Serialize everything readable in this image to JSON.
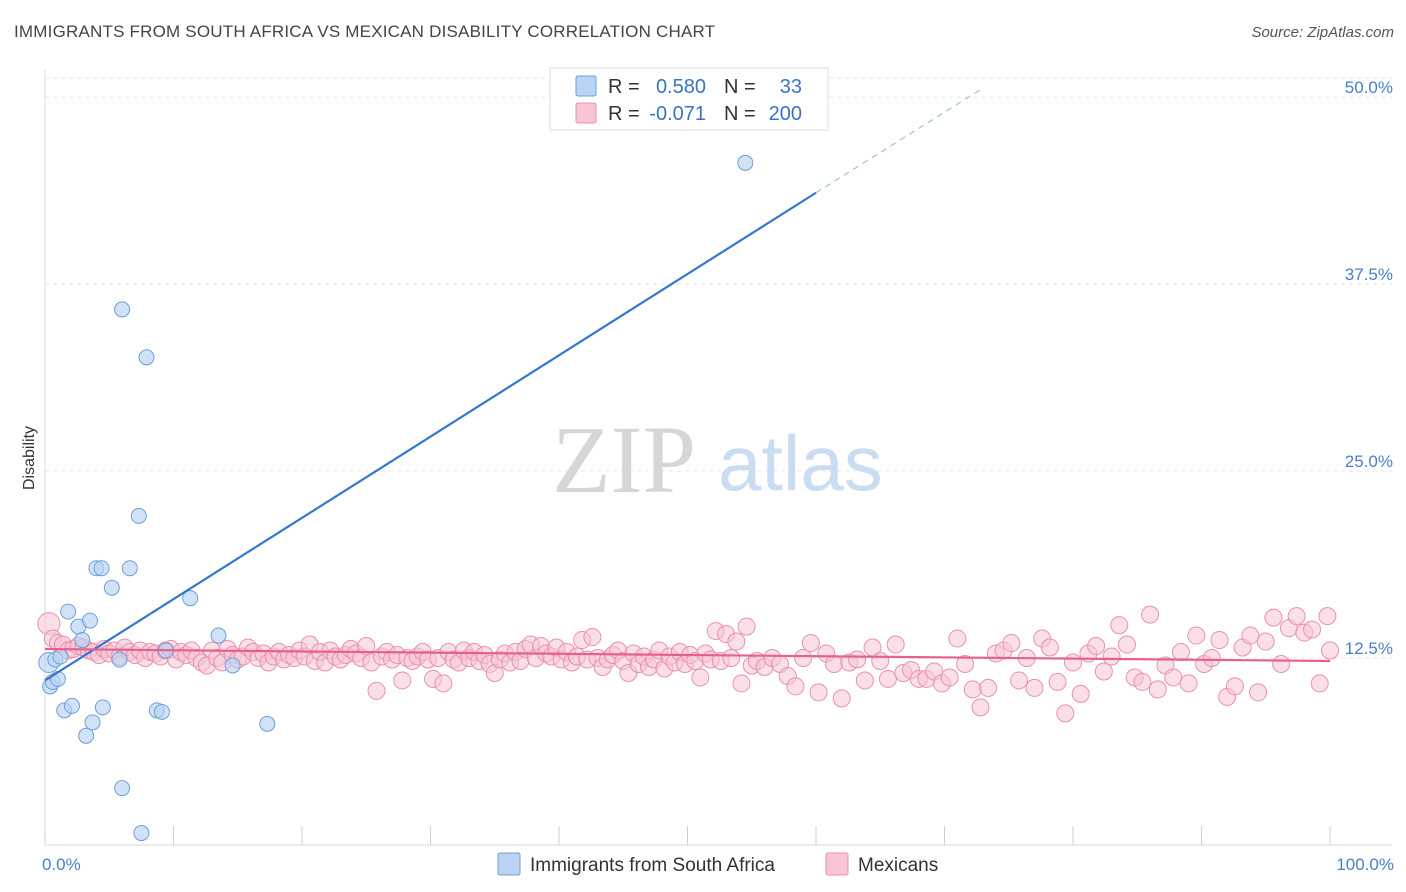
{
  "header": {
    "title": "IMMIGRANTS FROM SOUTH AFRICA VS MEXICAN DISABILITY CORRELATION CHART",
    "source": "Source: ZipAtlas.com"
  },
  "watermark": {
    "zip": "ZIP",
    "atlas": "atlas"
  },
  "colors": {
    "blue_fill": "#b9d3f2",
    "blue_stroke": "#6d9fd6",
    "blue_line": "#3478cc",
    "pink_fill": "#f8c5d5",
    "pink_stroke": "#e890ae",
    "pink_line": "#e5608f",
    "value_text": "#3b73c4"
  },
  "legend": {
    "r_label": "R =",
    "n_label": "N =",
    "rows": [
      {
        "series": "blue",
        "r_value": "0.580",
        "n_value": "33"
      },
      {
        "series": "pink",
        "r_value": "-0.071",
        "n_value": "200"
      }
    ]
  },
  "bottom_legend": {
    "items": [
      {
        "series": "blue",
        "label": "Immigrants from South Africa"
      },
      {
        "series": "pink",
        "label": "Mexicans"
      }
    ]
  },
  "chart_data": {
    "type": "scatter",
    "title": "IMMIGRANTS FROM SOUTH AFRICA VS MEXICAN DISABILITY CORRELATION CHART",
    "xlabel": "",
    "ylabel": "Disability",
    "xlim": [
      0,
      100
    ],
    "ylim": [
      0,
      50
    ],
    "x_tick_labels": [
      "0.0%",
      "100.0%"
    ],
    "y_ticks": [
      12.5,
      25.0,
      37.5,
      50.0
    ],
    "y_tick_labels": [
      "12.5%",
      "25.0%",
      "37.5%",
      "50.0%"
    ],
    "gridlines": "horizontal dashed",
    "series": [
      {
        "name": "Immigrants from South Africa",
        "color": "blue",
        "r": 0.58,
        "n": 33,
        "trendline": {
          "x_start": 0,
          "y_start": 11.0,
          "x_solid_end": 60,
          "y_solid_end": 43.6,
          "x_dash_end": 73,
          "y_dash_end": 50.6
        },
        "points": [
          [
            0.3,
            12.2
          ],
          [
            0.4,
            10.6
          ],
          [
            0.6,
            10.9
          ],
          [
            0.8,
            12.4
          ],
          [
            1.0,
            11.1
          ],
          [
            1.2,
            12.6
          ],
          [
            1.5,
            9.0
          ],
          [
            1.8,
            15.6
          ],
          [
            2.1,
            9.3
          ],
          [
            2.6,
            14.6
          ],
          [
            2.9,
            13.7
          ],
          [
            3.2,
            7.3
          ],
          [
            3.5,
            15.0
          ],
          [
            3.7,
            8.2
          ],
          [
            4.0,
            18.5
          ],
          [
            4.4,
            18.5
          ],
          [
            4.5,
            9.2
          ],
          [
            5.2,
            17.2
          ],
          [
            5.8,
            12.4
          ],
          [
            6.0,
            35.8
          ],
          [
            6.0,
            3.8
          ],
          [
            6.6,
            18.5
          ],
          [
            7.3,
            22.0
          ],
          [
            7.5,
            0.8
          ],
          [
            7.9,
            32.6
          ],
          [
            8.7,
            9.0
          ],
          [
            9.1,
            8.9
          ],
          [
            9.4,
            13.0
          ],
          [
            11.3,
            16.5
          ],
          [
            13.5,
            14.0
          ],
          [
            14.6,
            12.0
          ],
          [
            17.3,
            8.1
          ],
          [
            54.5,
            45.6
          ]
        ]
      },
      {
        "name": "Mexicans",
        "color": "pink",
        "r": -0.071,
        "n": 200,
        "trendline": {
          "x_start": 0,
          "y_start": 13.1,
          "x_end": 100,
          "y_end": 12.3
        },
        "points": [
          [
            0.3,
            14.8
          ],
          [
            0.6,
            13.8
          ],
          [
            1.0,
            13.5
          ],
          [
            1.4,
            13.4
          ],
          [
            1.8,
            13.0
          ],
          [
            2.2,
            13.1
          ],
          [
            2.6,
            13.3
          ],
          [
            3.0,
            13.2
          ],
          [
            3.4,
            13.0
          ],
          [
            3.8,
            12.9
          ],
          [
            4.2,
            12.7
          ],
          [
            4.6,
            13.1
          ],
          [
            5.0,
            12.8
          ],
          [
            5.4,
            13.0
          ],
          [
            5.8,
            12.6
          ],
          [
            6.2,
            13.2
          ],
          [
            6.6,
            12.9
          ],
          [
            7.0,
            12.7
          ],
          [
            7.4,
            13.0
          ],
          [
            7.8,
            12.5
          ],
          [
            8.2,
            12.9
          ],
          [
            8.6,
            12.8
          ],
          [
            9.0,
            12.6
          ],
          [
            9.4,
            13.0
          ],
          [
            9.8,
            13.1
          ],
          [
            10.2,
            12.4
          ],
          [
            10.6,
            12.9
          ],
          [
            11.0,
            12.7
          ],
          [
            11.4,
            13.0
          ],
          [
            11.8,
            12.5
          ],
          [
            12.2,
            12.2
          ],
          [
            12.6,
            12.0
          ],
          [
            13.0,
            13.0
          ],
          [
            13.4,
            12.5
          ],
          [
            13.8,
            12.2
          ],
          [
            14.2,
            13.1
          ],
          [
            14.6,
            12.7
          ],
          [
            15.0,
            12.4
          ],
          [
            15.4,
            12.6
          ],
          [
            15.8,
            13.2
          ],
          [
            16.2,
            12.9
          ],
          [
            16.6,
            12.5
          ],
          [
            17.0,
            12.8
          ],
          [
            17.4,
            12.2
          ],
          [
            17.8,
            12.6
          ],
          [
            18.2,
            12.9
          ],
          [
            18.6,
            12.4
          ],
          [
            19.0,
            12.7
          ],
          [
            19.4,
            12.5
          ],
          [
            19.8,
            13.0
          ],
          [
            20.2,
            12.6
          ],
          [
            20.6,
            13.4
          ],
          [
            21.0,
            12.3
          ],
          [
            21.4,
            12.9
          ],
          [
            21.8,
            12.2
          ],
          [
            22.2,
            13.0
          ],
          [
            22.6,
            12.6
          ],
          [
            23.0,
            12.4
          ],
          [
            23.4,
            12.7
          ],
          [
            23.8,
            13.1
          ],
          [
            24.2,
            12.8
          ],
          [
            24.6,
            12.5
          ],
          [
            25.0,
            13.3
          ],
          [
            25.4,
            12.2
          ],
          [
            25.8,
            10.3
          ],
          [
            26.2,
            12.6
          ],
          [
            26.6,
            12.9
          ],
          [
            27.0,
            12.4
          ],
          [
            27.4,
            12.7
          ],
          [
            27.8,
            11.0
          ],
          [
            28.2,
            12.5
          ],
          [
            28.6,
            12.3
          ],
          [
            29.0,
            12.6
          ],
          [
            29.4,
            12.9
          ],
          [
            29.8,
            12.4
          ],
          [
            30.2,
            11.1
          ],
          [
            30.6,
            12.5
          ],
          [
            31.0,
            10.8
          ],
          [
            31.4,
            12.9
          ],
          [
            31.8,
            12.4
          ],
          [
            32.2,
            12.2
          ],
          [
            32.6,
            13.0
          ],
          [
            33.0,
            12.5
          ],
          [
            33.4,
            12.9
          ],
          [
            33.8,
            12.3
          ],
          [
            34.2,
            12.7
          ],
          [
            34.6,
            12.1
          ],
          [
            35.0,
            11.5
          ],
          [
            35.4,
            12.4
          ],
          [
            35.8,
            12.8
          ],
          [
            36.2,
            12.2
          ],
          [
            36.6,
            12.9
          ],
          [
            37.0,
            12.3
          ],
          [
            37.4,
            13.1
          ],
          [
            37.8,
            13.4
          ],
          [
            38.2,
            12.5
          ],
          [
            38.6,
            13.3
          ],
          [
            39.0,
            12.8
          ],
          [
            39.4,
            12.6
          ],
          [
            39.8,
            13.2
          ],
          [
            40.2,
            12.4
          ],
          [
            40.6,
            12.9
          ],
          [
            41.0,
            12.2
          ],
          [
            41.4,
            12.6
          ],
          [
            41.8,
            13.7
          ],
          [
            42.2,
            12.4
          ],
          [
            42.6,
            13.9
          ],
          [
            43.0,
            12.5
          ],
          [
            43.4,
            11.9
          ],
          [
            43.8,
            12.4
          ],
          [
            44.2,
            12.7
          ],
          [
            44.6,
            13.0
          ],
          [
            45.0,
            12.3
          ],
          [
            45.4,
            11.5
          ],
          [
            45.8,
            12.8
          ],
          [
            46.2,
            12.1
          ],
          [
            46.6,
            12.6
          ],
          [
            47.0,
            11.9
          ],
          [
            47.4,
            12.4
          ],
          [
            47.8,
            13.0
          ],
          [
            48.2,
            11.8
          ],
          [
            48.6,
            12.6
          ],
          [
            49.0,
            12.2
          ],
          [
            49.4,
            12.9
          ],
          [
            49.8,
            12.1
          ],
          [
            50.2,
            12.7
          ],
          [
            50.6,
            12.3
          ],
          [
            51.0,
            11.2
          ],
          [
            51.4,
            12.8
          ],
          [
            51.8,
            12.4
          ],
          [
            52.2,
            14.3
          ],
          [
            52.6,
            12.3
          ],
          [
            53.0,
            14.1
          ],
          [
            53.4,
            12.5
          ],
          [
            53.8,
            13.6
          ],
          [
            54.2,
            10.8
          ],
          [
            54.6,
            14.6
          ],
          [
            55.0,
            12.0
          ],
          [
            55.4,
            12.3
          ],
          [
            56.0,
            11.9
          ],
          [
            56.6,
            12.5
          ],
          [
            57.2,
            12.1
          ],
          [
            57.8,
            11.3
          ],
          [
            58.4,
            10.6
          ],
          [
            59.0,
            12.5
          ],
          [
            59.6,
            13.5
          ],
          [
            60.2,
            10.2
          ],
          [
            60.8,
            12.8
          ],
          [
            61.4,
            12.1
          ],
          [
            62.0,
            9.8
          ],
          [
            62.6,
            12.2
          ],
          [
            63.2,
            12.4
          ],
          [
            63.8,
            11.0
          ],
          [
            64.4,
            13.2
          ],
          [
            65.0,
            12.3
          ],
          [
            65.6,
            11.1
          ],
          [
            66.2,
            13.4
          ],
          [
            66.8,
            11.5
          ],
          [
            67.4,
            11.7
          ],
          [
            68.0,
            11.1
          ],
          [
            68.6,
            11.1
          ],
          [
            69.2,
            11.6
          ],
          [
            69.8,
            10.8
          ],
          [
            70.4,
            11.2
          ],
          [
            71.0,
            13.8
          ],
          [
            71.6,
            12.1
          ],
          [
            72.2,
            10.4
          ],
          [
            72.8,
            9.2
          ],
          [
            73.4,
            10.5
          ],
          [
            74.0,
            12.8
          ],
          [
            74.6,
            13.0
          ],
          [
            75.2,
            13.5
          ],
          [
            75.8,
            11.0
          ],
          [
            76.4,
            12.5
          ],
          [
            77.0,
            10.5
          ],
          [
            77.6,
            13.8
          ],
          [
            78.2,
            13.2
          ],
          [
            78.8,
            10.9
          ],
          [
            79.4,
            8.8
          ],
          [
            80.0,
            12.2
          ],
          [
            80.6,
            10.1
          ],
          [
            81.2,
            12.8
          ],
          [
            81.8,
            13.3
          ],
          [
            82.4,
            11.6
          ],
          [
            83.0,
            12.6
          ],
          [
            83.6,
            14.7
          ],
          [
            84.2,
            13.4
          ],
          [
            84.8,
            11.2
          ],
          [
            85.4,
            10.9
          ],
          [
            86.0,
            15.4
          ],
          [
            86.6,
            10.4
          ],
          [
            87.2,
            12.0
          ],
          [
            87.8,
            11.2
          ],
          [
            88.4,
            12.9
          ],
          [
            89.0,
            10.8
          ],
          [
            89.6,
            14.0
          ],
          [
            90.2,
            12.1
          ],
          [
            90.8,
            12.5
          ],
          [
            91.4,
            13.7
          ],
          [
            92.0,
            9.9
          ],
          [
            92.6,
            10.6
          ],
          [
            93.2,
            13.2
          ],
          [
            93.8,
            14.0
          ],
          [
            94.4,
            10.2
          ],
          [
            95.0,
            13.6
          ],
          [
            95.6,
            15.2
          ],
          [
            96.2,
            12.1
          ],
          [
            96.8,
            14.5
          ],
          [
            97.4,
            15.3
          ],
          [
            98.0,
            14.2
          ],
          [
            98.6,
            14.4
          ],
          [
            99.2,
            10.8
          ],
          [
            99.8,
            15.3
          ],
          [
            100.0,
            13.0
          ]
        ]
      }
    ]
  }
}
